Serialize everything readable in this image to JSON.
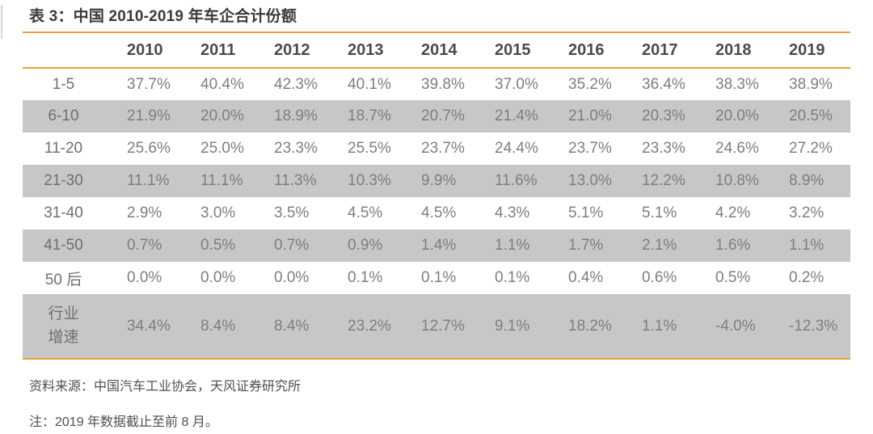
{
  "title": "表 3：中国 2010-2019 年车企合计份额",
  "table": {
    "corner_label": "",
    "years": [
      "2010",
      "2011",
      "2012",
      "2013",
      "2014",
      "2015",
      "2016",
      "2017",
      "2018",
      "2019"
    ],
    "rows": [
      {
        "label": "1-5",
        "values": [
          "37.7%",
          "40.4%",
          "42.3%",
          "40.1%",
          "39.8%",
          "37.0%",
          "35.2%",
          "36.4%",
          "38.3%",
          "38.9%"
        ]
      },
      {
        "label": "6-10",
        "values": [
          "21.9%",
          "20.0%",
          "18.9%",
          "18.7%",
          "20.7%",
          "21.4%",
          "21.0%",
          "20.3%",
          "20.0%",
          "20.5%"
        ]
      },
      {
        "label": "11-20",
        "values": [
          "25.6%",
          "25.0%",
          "23.3%",
          "25.5%",
          "23.7%",
          "24.4%",
          "23.7%",
          "23.3%",
          "24.6%",
          "27.2%"
        ]
      },
      {
        "label": "21-30",
        "values": [
          "11.1%",
          "11.1%",
          "11.3%",
          "10.3%",
          "9.9%",
          "11.6%",
          "13.0%",
          "12.2%",
          "10.8%",
          "8.9%"
        ]
      },
      {
        "label": "31-40",
        "values": [
          "2.9%",
          "3.0%",
          "3.5%",
          "4.5%",
          "4.5%",
          "4.3%",
          "5.1%",
          "5.1%",
          "4.2%",
          "3.2%"
        ]
      },
      {
        "label": "41-50",
        "values": [
          "0.7%",
          "0.5%",
          "0.7%",
          "0.9%",
          "1.4%",
          "1.1%",
          "1.7%",
          "2.1%",
          "1.6%",
          "1.1%"
        ]
      },
      {
        "label": "50 后",
        "values": [
          "0.0%",
          "0.0%",
          "0.0%",
          "0.1%",
          "0.1%",
          "0.1%",
          "0.4%",
          "0.6%",
          "0.5%",
          "0.2%"
        ]
      },
      {
        "label": "行业增速",
        "values": [
          "34.4%",
          "8.4%",
          "8.4%",
          "23.2%",
          "12.7%",
          "9.1%",
          "18.2%",
          "1.1%",
          "-4.0%",
          "-12.3%"
        ]
      }
    ]
  },
  "footer": {
    "source": "资料来源：中国汽车工业协会，天风证券研究所",
    "note": "注：2019 年数据截止至前 8 月。"
  },
  "colors": {
    "accent_orange": "#ED9E3C",
    "shaded_row": "#C7C7C7",
    "title_text": "#3B3B3B",
    "header_text": "#4C4C4C",
    "cell_text": "#7E7E7E",
    "footer_text": "#4F4F4F"
  }
}
